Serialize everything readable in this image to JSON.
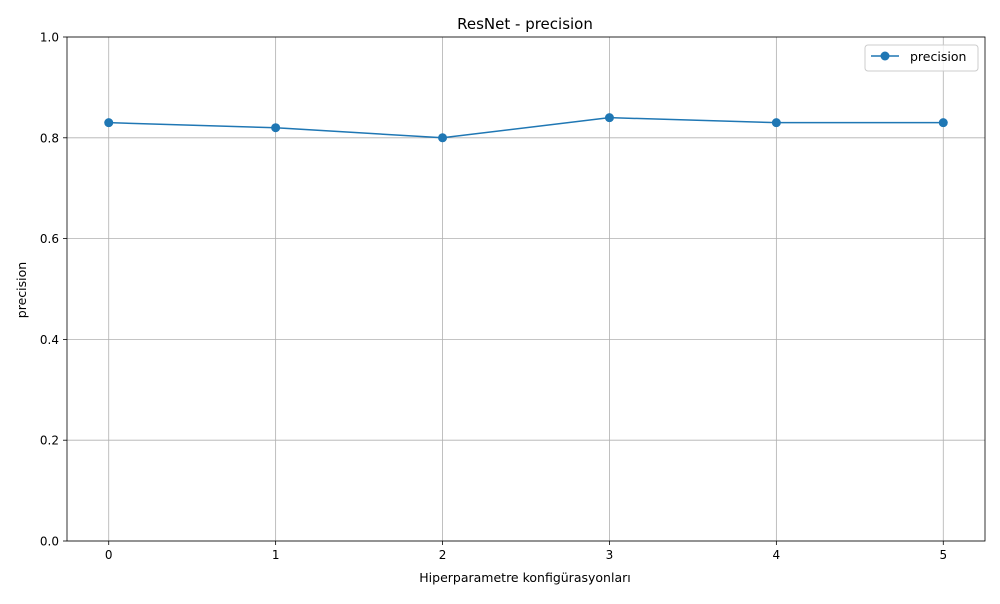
{
  "chart_data": {
    "type": "line",
    "title": "ResNet - precision",
    "xlabel": "Hiperparametre konfigürasyonları",
    "ylabel": "precision",
    "x": [
      0,
      1,
      2,
      3,
      4,
      5
    ],
    "xticks": [
      "0",
      "1",
      "2",
      "3",
      "4",
      "5"
    ],
    "yticks": [
      "0.0",
      "0.2",
      "0.4",
      "0.6",
      "0.8",
      "1.0"
    ],
    "ylim": [
      0,
      1
    ],
    "xlim": [
      -0.25,
      5.25
    ],
    "grid": true,
    "legend_position": "top-right",
    "series": [
      {
        "name": "precision",
        "color": "#1f77b4",
        "marker": "circle",
        "values": [
          0.83,
          0.82,
          0.8,
          0.84,
          0.83,
          0.83
        ]
      }
    ]
  }
}
